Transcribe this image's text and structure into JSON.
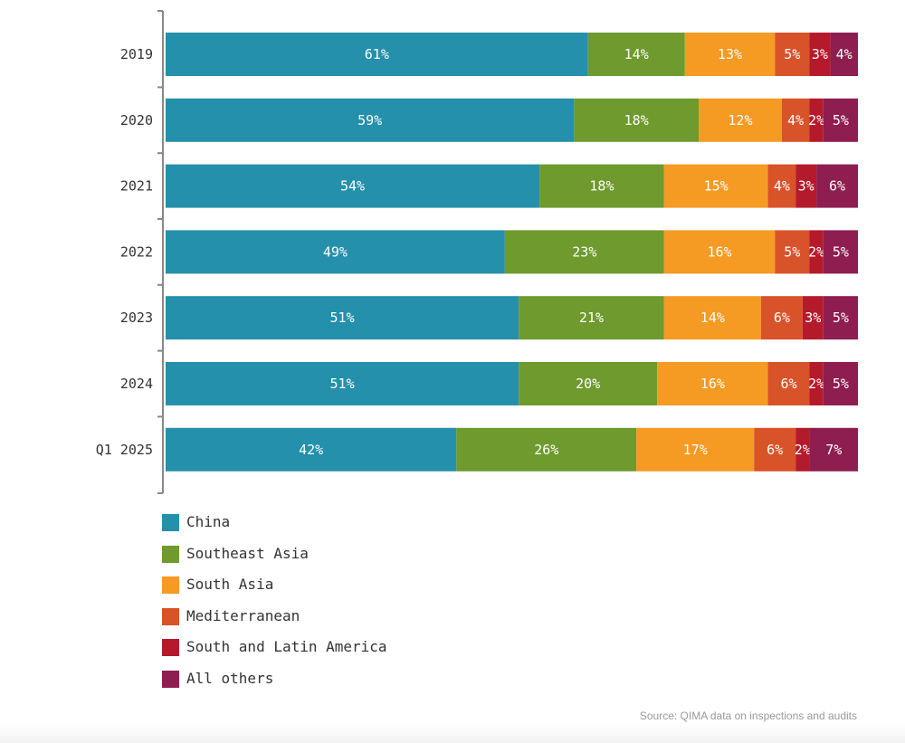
{
  "chart_data": {
    "type": "bar",
    "orientation": "horizontal",
    "stacked": true,
    "categories": [
      "2019",
      "2020",
      "2021",
      "2022",
      "2023",
      "2024",
      "Q1 2025"
    ],
    "series": [
      {
        "name": "China",
        "color": "#2590ab",
        "values": [
          61,
          59,
          54,
          49,
          51,
          51,
          42
        ]
      },
      {
        "name": "Southeast Asia",
        "color": "#6e9a2e",
        "values": [
          14,
          18,
          18,
          23,
          21,
          20,
          26
        ]
      },
      {
        "name": "South Asia",
        "color": "#f59a23",
        "values": [
          13,
          12,
          15,
          16,
          14,
          16,
          17
        ]
      },
      {
        "name": "Mediterranean",
        "color": "#d9532a",
        "values": [
          5,
          4,
          4,
          5,
          6,
          6,
          6
        ]
      },
      {
        "name": "South and Latin America",
        "color": "#b51a2b",
        "values": [
          3,
          2,
          3,
          2,
          3,
          2,
          2
        ]
      },
      {
        "name": "All others",
        "color": "#8e1e4f",
        "values": [
          4,
          5,
          6,
          5,
          5,
          5,
          7
        ]
      }
    ],
    "value_suffix": "%",
    "legend_position": "bottom-left",
    "grid": false,
    "source": "Source: QIMA data on inspections and audits"
  }
}
